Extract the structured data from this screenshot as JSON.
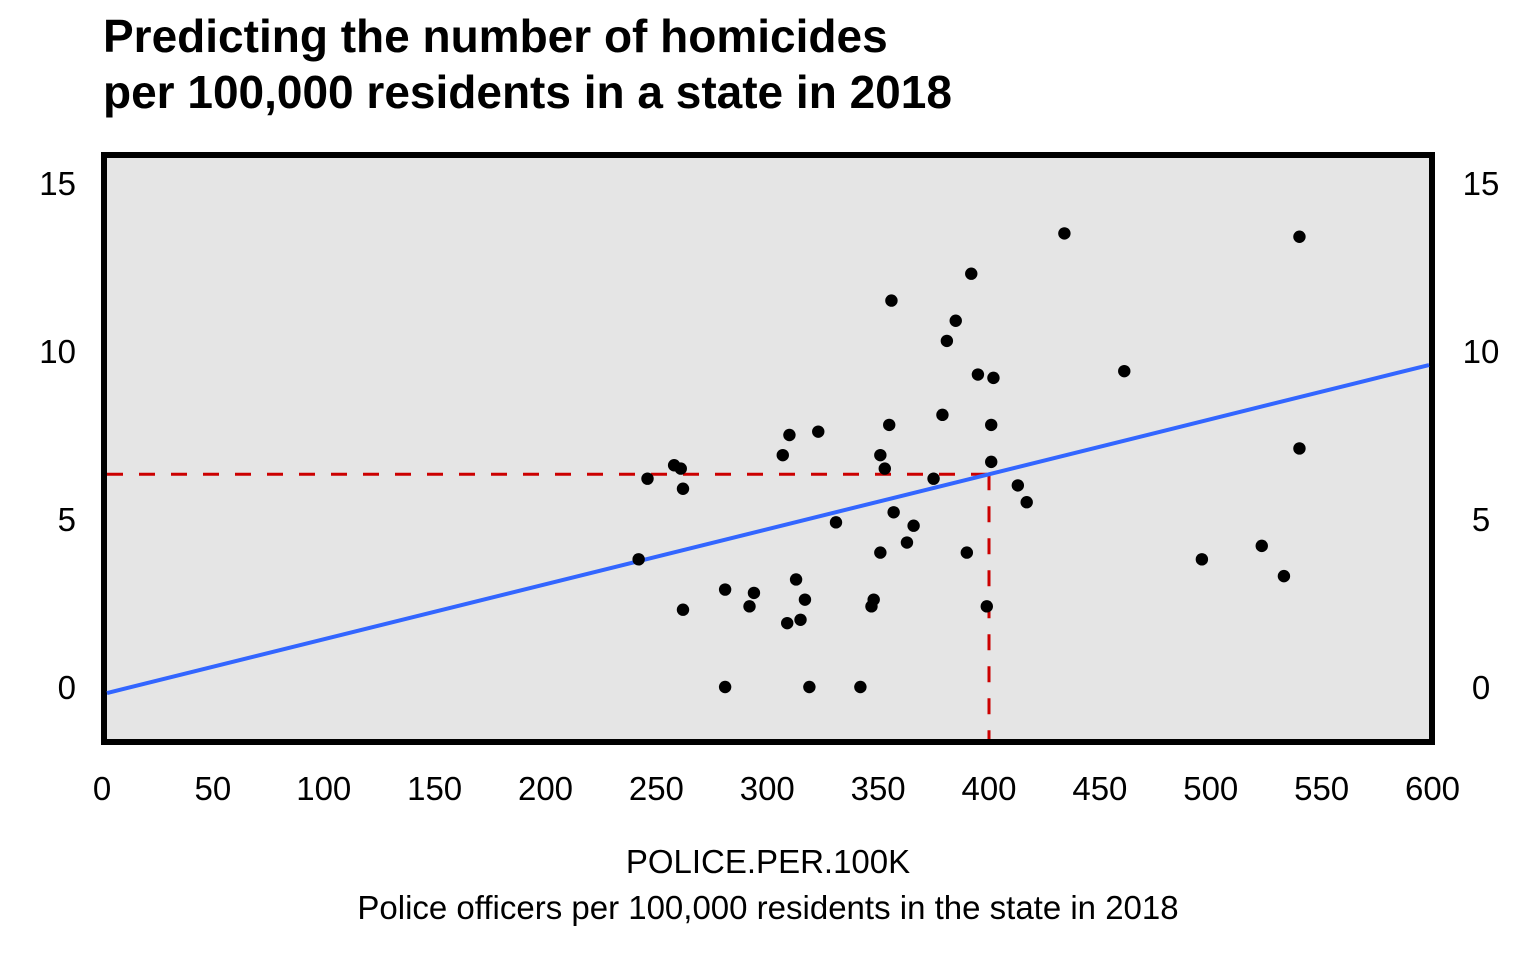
{
  "chart_data": {
    "type": "scatter",
    "title": [
      "Predicting the number of homicides",
      "per 100,000 residents in a state in 2018"
    ],
    "xlabel": [
      "POLICE.PER.100K",
      "Police officers per 100,000 residents in the state in 2018"
    ],
    "ylabel": "",
    "xlim": [
      0,
      600
    ],
    "ylim": [
      -1.6,
      15.9
    ],
    "x_ticks": [
      0,
      50,
      100,
      150,
      200,
      250,
      300,
      350,
      400,
      450,
      500,
      550,
      600
    ],
    "y_ticks": [
      0,
      5,
      10,
      15
    ],
    "y_ticks_right": [
      0,
      5,
      10,
      15
    ],
    "grid": false,
    "legend": "none",
    "colors": {
      "panel_background": "#e5e5e5",
      "panel_border": "#000000",
      "points": "#000000",
      "regression_line": "#3366ff",
      "prediction_guides": "#cc0000"
    },
    "points": [
      {
        "x": 246,
        "y": 6.2
      },
      {
        "x": 258,
        "y": 6.6
      },
      {
        "x": 261,
        "y": 6.5
      },
      {
        "x": 262,
        "y": 5.9
      },
      {
        "x": 242,
        "y": 3.8
      },
      {
        "x": 262,
        "y": 2.3
      },
      {
        "x": 281,
        "y": 2.9
      },
      {
        "x": 294,
        "y": 2.8
      },
      {
        "x": 292,
        "y": 2.4
      },
      {
        "x": 313,
        "y": 3.2
      },
      {
        "x": 317,
        "y": 2.6
      },
      {
        "x": 315,
        "y": 2.0
      },
      {
        "x": 309,
        "y": 1.9
      },
      {
        "x": 281,
        "y": 0.0
      },
      {
        "x": 319,
        "y": 0.0
      },
      {
        "x": 310,
        "y": 7.5
      },
      {
        "x": 323,
        "y": 7.6
      },
      {
        "x": 307,
        "y": 6.9
      },
      {
        "x": 355,
        "y": 7.8
      },
      {
        "x": 351,
        "y": 6.9
      },
      {
        "x": 353,
        "y": 6.5
      },
      {
        "x": 375,
        "y": 6.2
      },
      {
        "x": 331,
        "y": 4.9
      },
      {
        "x": 357,
        "y": 5.2
      },
      {
        "x": 366,
        "y": 4.8
      },
      {
        "x": 363,
        "y": 4.3
      },
      {
        "x": 351,
        "y": 4.0
      },
      {
        "x": 348,
        "y": 2.6
      },
      {
        "x": 347,
        "y": 2.4
      },
      {
        "x": 399,
        "y": 2.4
      },
      {
        "x": 342,
        "y": 0.0
      },
      {
        "x": 392,
        "y": 12.3
      },
      {
        "x": 356,
        "y": 11.5
      },
      {
        "x": 385,
        "y": 10.9
      },
      {
        "x": 381,
        "y": 10.3
      },
      {
        "x": 395,
        "y": 9.3
      },
      {
        "x": 402,
        "y": 9.2
      },
      {
        "x": 379,
        "y": 8.1
      },
      {
        "x": 401,
        "y": 7.8
      },
      {
        "x": 401,
        "y": 6.7
      },
      {
        "x": 413,
        "y": 6.0
      },
      {
        "x": 417,
        "y": 5.5
      },
      {
        "x": 390,
        "y": 4.0
      },
      {
        "x": 434,
        "y": 13.5
      },
      {
        "x": 461,
        "y": 9.4
      },
      {
        "x": 540,
        "y": 13.4
      },
      {
        "x": 540,
        "y": 7.1
      },
      {
        "x": 496,
        "y": 3.8
      },
      {
        "x": 523,
        "y": 4.2
      },
      {
        "x": 533,
        "y": 3.3
      }
    ],
    "regression_line": {
      "intercept": -0.18,
      "slope": 0.01627,
      "x_range": [
        0,
        600
      ]
    },
    "prediction": {
      "x": 400,
      "y": 6.33
    }
  }
}
